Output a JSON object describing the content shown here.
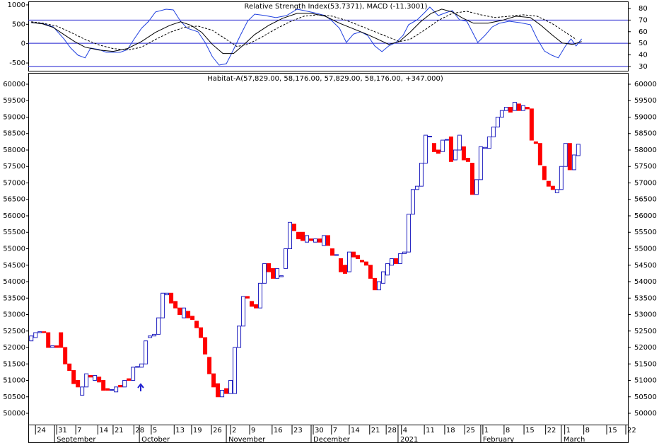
{
  "chart_data": [
    {
      "type": "line",
      "title": "Relative Strength Index(53.7371), MACD (-11.3001)",
      "xlim": [
        -0.7,
        140.7
      ],
      "ylim": [
        -700,
        1090
      ],
      "yticks": [
        1000,
        500,
        0,
        -500
      ],
      "y2lim": [
        26.3,
        86.1
      ],
      "y2ticks": [
        80,
        70,
        60,
        50,
        40,
        30
      ],
      "rsi_levels": [
        70,
        50,
        30
      ],
      "level_color": "#1f1fcf",
      "series": [
        {
          "color": "#1f3fdf",
          "axis": "y2",
          "dash": false,
          "x": [
            0,
            2.7,
            5.2,
            7.7,
            9.3,
            11,
            12.7,
            14,
            16,
            17.7,
            19.3,
            21,
            22.7,
            24.3,
            26,
            27.7,
            29.3,
            31.8,
            33.5,
            35.2,
            36.8,
            39.3,
            41,
            42.7,
            44.3,
            46,
            47.7,
            49.3,
            51,
            52.7,
            55.2,
            57.7,
            60.2,
            62.7,
            64.3,
            66.8,
            69.3,
            71,
            72.7,
            74.3,
            76,
            77.7,
            79.3,
            81,
            82.7,
            84.3,
            86,
            87.7,
            89,
            91,
            92.7,
            94,
            96,
            97.7,
            99.3,
            101,
            102.7,
            104,
            105.3,
            107,
            108.7,
            110.3,
            112.7,
            115.2,
            117.7,
            119.3,
            121,
            122.7,
            124.3,
            126,
            127.3,
            128.5,
            129.8
          ],
          "values": [
            67.8,
            67.2,
            64.1,
            53.8,
            45.9,
            39.8,
            37.4,
            45.9,
            44.6,
            42.2,
            42.2,
            42.2,
            44.6,
            53.8,
            62.9,
            69.0,
            77.0,
            79.4,
            78.8,
            69.0,
            62.9,
            59.9,
            50.7,
            38.5,
            31.2,
            32.4,
            44.6,
            56.8,
            69.0,
            75.1,
            73.9,
            72.1,
            73.9,
            79.4,
            78.2,
            76.3,
            73.9,
            69.0,
            62.9,
            50.7,
            58.0,
            59.9,
            56.8,
            47.7,
            42.8,
            47.7,
            50.7,
            56.8,
            66.0,
            70.2,
            76.3,
            81.2,
            73.9,
            76.3,
            78.2,
            70.2,
            69.0,
            59.9,
            50.7,
            56.8,
            64.1,
            67.2,
            69.0,
            67.8,
            66.0,
            53.8,
            43.4,
            39.8,
            37.4,
            47.7,
            53.8,
            47.7,
            53.8
          ]
        },
        {
          "color": "#000000",
          "axis": "y",
          "dash": false,
          "x": [
            0,
            2.7,
            5.2,
            7.7,
            10.2,
            12.7,
            16,
            19.3,
            22.7,
            26,
            29.3,
            32.7,
            35.2,
            37.7,
            40.2,
            42.7,
            45.2,
            47.7,
            50.2,
            52.7,
            56,
            59.3,
            62.7,
            66,
            69.3,
            72.7,
            76,
            79.3,
            81.8,
            84.3,
            86.8,
            89.3,
            91.8,
            94.3,
            96.8,
            99.3,
            101.8,
            104.3,
            107.7,
            111,
            114.3,
            117.7,
            120.2,
            122.7,
            125.2,
            127.7,
            129.8
          ],
          "values": [
            545,
            509,
            418,
            236,
            55,
            -91,
            -164,
            -200,
            -127,
            55,
            291,
            473,
            564,
            473,
            291,
            -18,
            -255,
            -255,
            -18,
            236,
            473,
            655,
            782,
            782,
            709,
            527,
            382,
            236,
            109,
            -18,
            55,
            291,
            564,
            782,
            891,
            818,
            655,
            527,
            527,
            600,
            709,
            673,
            473,
            236,
            18,
            -18,
            55
          ]
        },
        {
          "color": "#000000",
          "axis": "y",
          "dash": true,
          "x": [
            0,
            2.7,
            6,
            9.3,
            12.7,
            16,
            19.3,
            22.7,
            26,
            29.3,
            32.7,
            36,
            39.3,
            42.7,
            46,
            48.5,
            51,
            54.3,
            57.7,
            61,
            64.3,
            67.7,
            71,
            74.3,
            77.7,
            81,
            84.3,
            86.8,
            89.3,
            92.7,
            96,
            99.3,
            102.7,
            106,
            109.3,
            112.7,
            116,
            119.3,
            122.7,
            126,
            128.5
          ],
          "values": [
            564,
            527,
            455,
            291,
            109,
            -36,
            -127,
            -164,
            -91,
            109,
            291,
            418,
            455,
            345,
            109,
            -73,
            -18,
            164,
            382,
            564,
            709,
            745,
            709,
            600,
            455,
            309,
            164,
            55,
            109,
            345,
            600,
            782,
            836,
            745,
            673,
            709,
            745,
            709,
            527,
            291,
            109
          ]
        }
      ]
    },
    {
      "type": "candlestick",
      "title": "Habitat-A(57,829.00, 58,176.00, 57,829.00, 58,176.00, +347.000)",
      "up_color": "#1f1fbf",
      "down_color": "#ff0000",
      "xlim": [
        -0.7,
        140.7
      ],
      "ylim": [
        49656,
        60344
      ],
      "yticks": [
        50000,
        50500,
        51000,
        51500,
        52000,
        52500,
        53000,
        53500,
        54000,
        54500,
        55000,
        55500,
        56000,
        56500,
        57000,
        57500,
        58000,
        58500,
        59000,
        59500,
        60000
      ],
      "xticks": [
        {
          "value": 1,
          "label": "24"
        },
        {
          "value": 6,
          "label": "31"
        },
        {
          "value": 10.5,
          "label": "7"
        },
        {
          "value": 15.7,
          "label": "14"
        },
        {
          "value": 19.3,
          "label": "21"
        },
        {
          "value": 24.2,
          "label": "28"
        },
        {
          "value": 28.3,
          "label": "5"
        },
        {
          "value": 33.7,
          "label": "13"
        },
        {
          "value": 37.8,
          "label": "19"
        },
        {
          "value": 42.5,
          "label": "26"
        },
        {
          "value": 47,
          "label": "2"
        },
        {
          "value": 51.5,
          "label": "9"
        },
        {
          "value": 56.8,
          "label": "16"
        },
        {
          "value": 61.5,
          "label": "23"
        },
        {
          "value": 66.5,
          "label": "30"
        },
        {
          "value": 70.8,
          "label": "7"
        },
        {
          "value": 75,
          "label": "14"
        },
        {
          "value": 79.8,
          "label": "21"
        },
        {
          "value": 83.7,
          "label": "28"
        },
        {
          "value": 87.3,
          "label": "4"
        },
        {
          "value": 92.7,
          "label": "11"
        },
        {
          "value": 97.5,
          "label": "18"
        },
        {
          "value": 102.2,
          "label": "25"
        },
        {
          "value": 106.5,
          "label": "1"
        },
        {
          "value": 111.5,
          "label": "8"
        },
        {
          "value": 116.2,
          "label": "15"
        },
        {
          "value": 121.3,
          "label": "22"
        },
        {
          "value": 125.8,
          "label": "1"
        },
        {
          "value": 130.3,
          "label": "8"
        },
        {
          "value": 135.7,
          "label": "15"
        },
        {
          "value": 140.2,
          "label": "22"
        }
      ],
      "months": [
        {
          "value": 5.5,
          "label": "September"
        },
        {
          "value": 25.5,
          "label": "October"
        },
        {
          "value": 46,
          "label": "November"
        },
        {
          "value": 66,
          "label": "December"
        },
        {
          "value": 86.5,
          "label": "2021"
        },
        {
          "value": 106,
          "label": "February"
        },
        {
          "value": 125,
          "label": "March"
        }
      ],
      "open": [
        52200,
        52300,
        52450,
        52480,
        52450,
        52000,
        52050,
        52450,
        52000,
        51500,
        51300,
        51000,
        50550,
        50800,
        51150,
        51000,
        51100,
        51000,
        50750,
        50700,
        50650,
        50850,
        50800,
        51050,
        51000,
        51400,
        51400,
        51500,
        52300,
        52350,
        52400,
        52900,
        53600,
        53650,
        53400,
        53200,
        52900,
        53100,
        52950,
        52800,
        52600,
        52300,
        51700,
        51200,
        50900,
        50500,
        50750,
        50600,
        50600,
        52000,
        52650,
        53550,
        53400,
        53300,
        53200,
        53950,
        54550,
        54400,
        54100,
        54150,
        54400,
        55000,
        55750,
        55500,
        55500,
        55200,
        55300,
        55200,
        55300,
        55100,
        55400,
        55000,
        54800,
        54700,
        54500,
        54300,
        54900,
        54800,
        54650,
        54600,
        54500,
        54100,
        53750,
        53950,
        54200,
        54500,
        54700,
        54550,
        54850,
        54900,
        56050,
        56800,
        56900,
        57600,
        58400,
        58200,
        58000,
        57950,
        58300,
        58400,
        57700,
        58000,
        58100,
        57750,
        57600,
        56650,
        57100,
        58050,
        58050,
        58400,
        58700,
        59000,
        59200,
        59300,
        59200,
        59400,
        59200,
        59300,
        59250,
        58250,
        58200,
        57500,
        57050,
        56900,
        56700,
        56800,
        57500,
        58200,
        57400,
        57829
      ],
      "close": [
        52350,
        52450,
        52480,
        52450,
        52000,
        52050,
        52000,
        52000,
        51500,
        51300,
        50900,
        50800,
        50800,
        51200,
        51100,
        51150,
        50950,
        50700,
        50700,
        50720,
        50800,
        50800,
        51000,
        51000,
        51400,
        51420,
        51500,
        52200,
        52350,
        52400,
        52900,
        53650,
        53650,
        53350,
        53200,
        53000,
        53200,
        52900,
        52850,
        52600,
        52300,
        51800,
        51200,
        50800,
        50500,
        50700,
        50600,
        51000,
        52000,
        52650,
        53550,
        53500,
        53250,
        53200,
        53950,
        54550,
        54300,
        54100,
        54400,
        54180,
        55000,
        55800,
        55550,
        55300,
        55250,
        55400,
        55250,
        55300,
        55200,
        55400,
        55100,
        54800,
        54820,
        54300,
        54250,
        54900,
        54750,
        54700,
        54600,
        54500,
        54100,
        53750,
        54000,
        54300,
        54550,
        54700,
        54550,
        54850,
        54900,
        56050,
        56800,
        56900,
        57600,
        58450,
        58420,
        57950,
        57900,
        58300,
        58320,
        57650,
        58000,
        58450,
        57700,
        57650,
        56650,
        57100,
        58100,
        58080,
        58400,
        58700,
        59000,
        59200,
        59300,
        59150,
        59450,
        59200,
        59350,
        59250,
        58300,
        58200,
        57550,
        57100,
        56900,
        56800,
        56800,
        57500,
        58200,
        57400,
        57850,
        58176
      ]
    }
  ]
}
